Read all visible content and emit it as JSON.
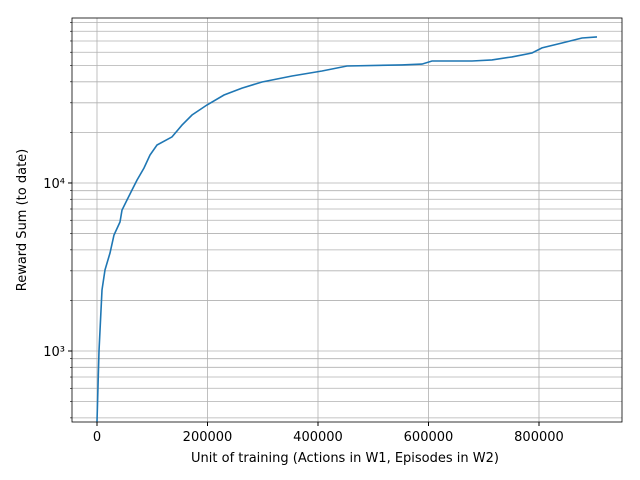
{
  "chart_data": {
    "type": "line",
    "xlabel": "Unit of training (Actions in W1, Episodes in W2)",
    "ylabel": "Reward Sum (to date)",
    "x": [
      0,
      3600,
      9000,
      14500,
      23500,
      30800,
      41600,
      45200,
      56100,
      63300,
      72400,
      85100,
      95900,
      108600,
      135700,
      153800,
      171900,
      199000,
      229900,
      262400,
      298600,
      352900,
      407200,
      452500,
      552000,
      588200,
      606300,
      678700,
      714900,
      751100,
      787300,
      805400,
      841600,
      877800,
      905000
    ],
    "values": [
      380,
      1000,
      2310,
      3040,
      3830,
      4900,
      5860,
      6900,
      8140,
      9080,
      10400,
      12280,
      14680,
      16830,
      18800,
      22100,
      25400,
      29100,
      33400,
      36700,
      39900,
      43300,
      46400,
      49700,
      50400,
      51000,
      53200,
      53200,
      54000,
      56300,
      59400,
      63700,
      68100,
      72900,
      74000
    ],
    "color": "#1f77b4",
    "xlim": [
      -45250,
      950250
    ],
    "xticks": [
      0,
      200000,
      400000,
      600000,
      800000
    ],
    "ylim": [
      378,
      95900
    ],
    "ylog": true,
    "yticks": [
      {
        "value": 1000,
        "label": "10³"
      },
      {
        "value": 10000,
        "label": "10⁴"
      }
    ],
    "yminorticks": [
      400,
      500,
      600,
      700,
      800,
      900,
      2000,
      3000,
      4000,
      5000,
      6000,
      7000,
      8000,
      9000,
      20000,
      30000,
      40000,
      50000,
      60000,
      70000,
      80000,
      90000
    ],
    "grid": true
  }
}
